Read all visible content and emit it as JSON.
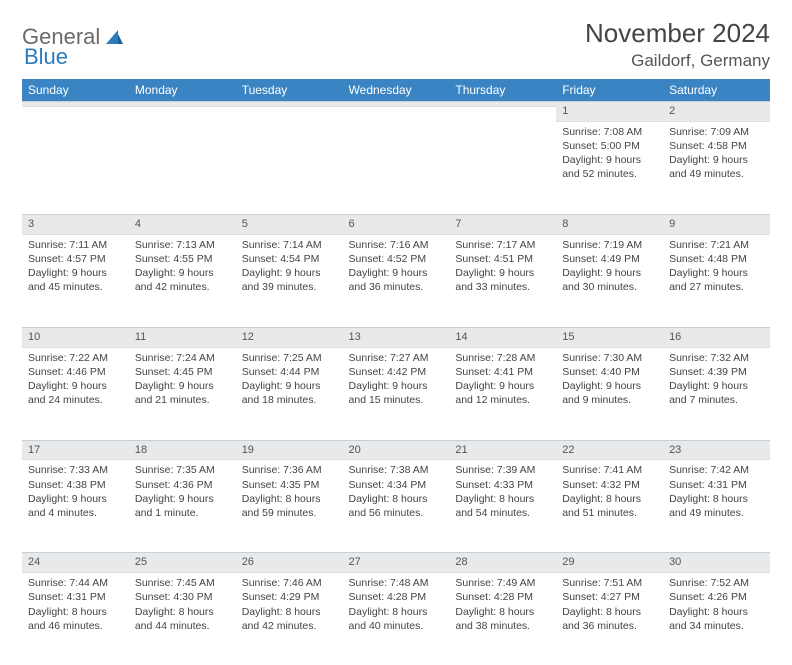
{
  "logo": {
    "word1": "General",
    "word2": "Blue"
  },
  "title": "November 2024",
  "location": "Gaildorf, Germany",
  "colors": {
    "header_bg": "#3a84c4",
    "header_text": "#ffffff",
    "daynum_bg": "#e7e9eb",
    "page_bg": "#ffffff",
    "text": "#444444",
    "logo_gray": "#6b6b6b",
    "logo_blue": "#2b7bbf"
  },
  "typography": {
    "title_fontsize": 26,
    "location_fontsize": 17,
    "dayheader_fontsize": 12,
    "body_fontsize": 10.5
  },
  "day_headers": [
    "Sunday",
    "Monday",
    "Tuesday",
    "Wednesday",
    "Thursday",
    "Friday",
    "Saturday"
  ],
  "weeks": [
    [
      {
        "n": "",
        "sunrise": "",
        "sunset": "",
        "daylight": ""
      },
      {
        "n": "",
        "sunrise": "",
        "sunset": "",
        "daylight": ""
      },
      {
        "n": "",
        "sunrise": "",
        "sunset": "",
        "daylight": ""
      },
      {
        "n": "",
        "sunrise": "",
        "sunset": "",
        "daylight": ""
      },
      {
        "n": "",
        "sunrise": "",
        "sunset": "",
        "daylight": ""
      },
      {
        "n": "1",
        "sunrise": "Sunrise: 7:08 AM",
        "sunset": "Sunset: 5:00 PM",
        "daylight": "Daylight: 9 hours and 52 minutes."
      },
      {
        "n": "2",
        "sunrise": "Sunrise: 7:09 AM",
        "sunset": "Sunset: 4:58 PM",
        "daylight": "Daylight: 9 hours and 49 minutes."
      }
    ],
    [
      {
        "n": "3",
        "sunrise": "Sunrise: 7:11 AM",
        "sunset": "Sunset: 4:57 PM",
        "daylight": "Daylight: 9 hours and 45 minutes."
      },
      {
        "n": "4",
        "sunrise": "Sunrise: 7:13 AM",
        "sunset": "Sunset: 4:55 PM",
        "daylight": "Daylight: 9 hours and 42 minutes."
      },
      {
        "n": "5",
        "sunrise": "Sunrise: 7:14 AM",
        "sunset": "Sunset: 4:54 PM",
        "daylight": "Daylight: 9 hours and 39 minutes."
      },
      {
        "n": "6",
        "sunrise": "Sunrise: 7:16 AM",
        "sunset": "Sunset: 4:52 PM",
        "daylight": "Daylight: 9 hours and 36 minutes."
      },
      {
        "n": "7",
        "sunrise": "Sunrise: 7:17 AM",
        "sunset": "Sunset: 4:51 PM",
        "daylight": "Daylight: 9 hours and 33 minutes."
      },
      {
        "n": "8",
        "sunrise": "Sunrise: 7:19 AM",
        "sunset": "Sunset: 4:49 PM",
        "daylight": "Daylight: 9 hours and 30 minutes."
      },
      {
        "n": "9",
        "sunrise": "Sunrise: 7:21 AM",
        "sunset": "Sunset: 4:48 PM",
        "daylight": "Daylight: 9 hours and 27 minutes."
      }
    ],
    [
      {
        "n": "10",
        "sunrise": "Sunrise: 7:22 AM",
        "sunset": "Sunset: 4:46 PM",
        "daylight": "Daylight: 9 hours and 24 minutes."
      },
      {
        "n": "11",
        "sunrise": "Sunrise: 7:24 AM",
        "sunset": "Sunset: 4:45 PM",
        "daylight": "Daylight: 9 hours and 21 minutes."
      },
      {
        "n": "12",
        "sunrise": "Sunrise: 7:25 AM",
        "sunset": "Sunset: 4:44 PM",
        "daylight": "Daylight: 9 hours and 18 minutes."
      },
      {
        "n": "13",
        "sunrise": "Sunrise: 7:27 AM",
        "sunset": "Sunset: 4:42 PM",
        "daylight": "Daylight: 9 hours and 15 minutes."
      },
      {
        "n": "14",
        "sunrise": "Sunrise: 7:28 AM",
        "sunset": "Sunset: 4:41 PM",
        "daylight": "Daylight: 9 hours and 12 minutes."
      },
      {
        "n": "15",
        "sunrise": "Sunrise: 7:30 AM",
        "sunset": "Sunset: 4:40 PM",
        "daylight": "Daylight: 9 hours and 9 minutes."
      },
      {
        "n": "16",
        "sunrise": "Sunrise: 7:32 AM",
        "sunset": "Sunset: 4:39 PM",
        "daylight": "Daylight: 9 hours and 7 minutes."
      }
    ],
    [
      {
        "n": "17",
        "sunrise": "Sunrise: 7:33 AM",
        "sunset": "Sunset: 4:38 PM",
        "daylight": "Daylight: 9 hours and 4 minutes."
      },
      {
        "n": "18",
        "sunrise": "Sunrise: 7:35 AM",
        "sunset": "Sunset: 4:36 PM",
        "daylight": "Daylight: 9 hours and 1 minute."
      },
      {
        "n": "19",
        "sunrise": "Sunrise: 7:36 AM",
        "sunset": "Sunset: 4:35 PM",
        "daylight": "Daylight: 8 hours and 59 minutes."
      },
      {
        "n": "20",
        "sunrise": "Sunrise: 7:38 AM",
        "sunset": "Sunset: 4:34 PM",
        "daylight": "Daylight: 8 hours and 56 minutes."
      },
      {
        "n": "21",
        "sunrise": "Sunrise: 7:39 AM",
        "sunset": "Sunset: 4:33 PM",
        "daylight": "Daylight: 8 hours and 54 minutes."
      },
      {
        "n": "22",
        "sunrise": "Sunrise: 7:41 AM",
        "sunset": "Sunset: 4:32 PM",
        "daylight": "Daylight: 8 hours and 51 minutes."
      },
      {
        "n": "23",
        "sunrise": "Sunrise: 7:42 AM",
        "sunset": "Sunset: 4:31 PM",
        "daylight": "Daylight: 8 hours and 49 minutes."
      }
    ],
    [
      {
        "n": "24",
        "sunrise": "Sunrise: 7:44 AM",
        "sunset": "Sunset: 4:31 PM",
        "daylight": "Daylight: 8 hours and 46 minutes."
      },
      {
        "n": "25",
        "sunrise": "Sunrise: 7:45 AM",
        "sunset": "Sunset: 4:30 PM",
        "daylight": "Daylight: 8 hours and 44 minutes."
      },
      {
        "n": "26",
        "sunrise": "Sunrise: 7:46 AM",
        "sunset": "Sunset: 4:29 PM",
        "daylight": "Daylight: 8 hours and 42 minutes."
      },
      {
        "n": "27",
        "sunrise": "Sunrise: 7:48 AM",
        "sunset": "Sunset: 4:28 PM",
        "daylight": "Daylight: 8 hours and 40 minutes."
      },
      {
        "n": "28",
        "sunrise": "Sunrise: 7:49 AM",
        "sunset": "Sunset: 4:28 PM",
        "daylight": "Daylight: 8 hours and 38 minutes."
      },
      {
        "n": "29",
        "sunrise": "Sunrise: 7:51 AM",
        "sunset": "Sunset: 4:27 PM",
        "daylight": "Daylight: 8 hours and 36 minutes."
      },
      {
        "n": "30",
        "sunrise": "Sunrise: 7:52 AM",
        "sunset": "Sunset: 4:26 PM",
        "daylight": "Daylight: 8 hours and 34 minutes."
      }
    ]
  ]
}
